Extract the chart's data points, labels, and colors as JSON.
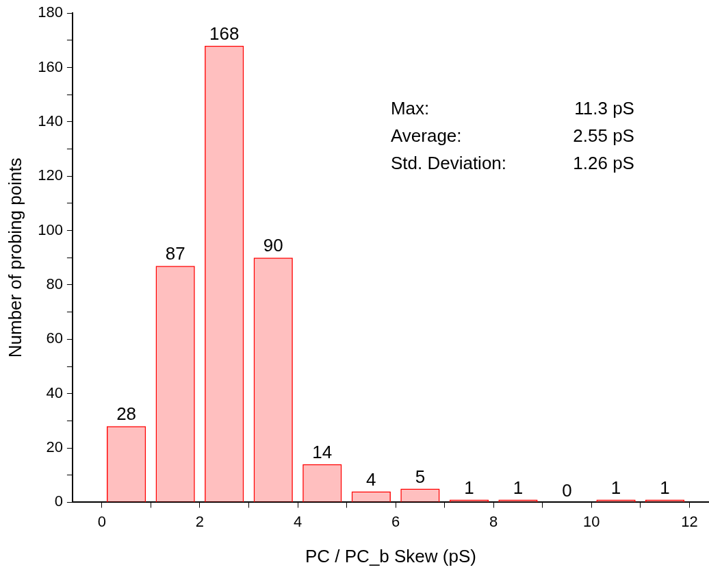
{
  "chart_data": {
    "type": "bar",
    "xlabel": "PC / PC_b Skew (pS)",
    "ylabel": "Number of probing points",
    "x": [
      0.5,
      1.5,
      2.5,
      3.5,
      4.5,
      5.5,
      6.5,
      7.5,
      8.5,
      9.5,
      10.5,
      11.5
    ],
    "values": [
      28,
      87,
      168,
      90,
      14,
      4,
      5,
      1,
      1,
      0,
      1,
      1
    ],
    "color": "#ff0000",
    "data_labels": true,
    "grid": false,
    "legend": false,
    "xlim": [
      -0.6,
      12.4
    ],
    "xticks": [
      0,
      {
        "value": 1,
        "label": null
      },
      2,
      {
        "value": 3,
        "label": null
      },
      4,
      {
        "value": 5,
        "label": null
      },
      6,
      {
        "value": 7,
        "label": null
      },
      8,
      {
        "value": 9,
        "label": null
      },
      10,
      {
        "value": 11,
        "label": null
      },
      12
    ],
    "ylim": [
      0,
      180
    ],
    "yticks": [
      0,
      {
        "value": 10,
        "label": null
      },
      20,
      {
        "value": 30,
        "label": null
      },
      40,
      {
        "value": 50,
        "label": null
      },
      60,
      {
        "value": 70,
        "label": null
      },
      80,
      {
        "value": 90,
        "label": null
      },
      100,
      {
        "value": 110,
        "label": null
      },
      120,
      {
        "value": 130,
        "label": null
      },
      140,
      {
        "value": 150,
        "label": null
      },
      160,
      {
        "value": 170,
        "label": null
      },
      180
    ],
    "annotations": [
      "Max: 11.3 pS",
      "Average: 2.55 pS",
      "Std. Deviation: 1.26 pS"
    ]
  }
}
